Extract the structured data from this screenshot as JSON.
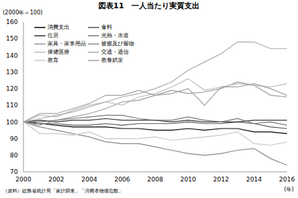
{
  "chart_data": {
    "type": "line",
    "title": "図表11　一人当たり実質支出",
    "y_label": "(2000年＝100)",
    "x_unit": "(年)",
    "note": "（資料）総務省統計局「家計調査」「消費者物価指数」",
    "x": [
      2000,
      2001,
      2002,
      2003,
      2004,
      2005,
      2006,
      2007,
      2008,
      2009,
      2010,
      2011,
      2012,
      2013,
      2014,
      2015,
      2016
    ],
    "xlim": [
      2000,
      2016
    ],
    "xticks": [
      2000,
      2002,
      2004,
      2006,
      2008,
      2010,
      2012,
      2014,
      2016
    ],
    "ylim": [
      70,
      160
    ],
    "yticks": [
      70,
      80,
      90,
      100,
      110,
      120,
      130,
      140,
      150,
      160
    ],
    "grid": false,
    "legend": "top-left",
    "series": [
      {
        "name": "消費支出",
        "color": "#000000",
        "values": [
          100,
          99,
          98,
          97,
          97,
          97,
          96,
          96,
          95,
          95,
          96,
          95,
          96,
          96,
          94,
          94,
          93
        ]
      },
      {
        "name": "食料",
        "color": "#555555",
        "values": [
          100,
          99,
          99,
          98,
          98,
          99,
          98,
          99,
          99,
          99,
          100,
          99,
          99,
          100,
          99,
          97,
          96
        ]
      },
      {
        "name": "住居",
        "color": "#333333",
        "values": [
          100,
          101,
          100,
          101,
          101,
          102,
          101,
          101,
          101,
          100,
          101,
          100,
          100,
          100,
          101,
          101,
          101
        ]
      },
      {
        "name": "光熱・水道",
        "color": "#777777",
        "values": [
          100,
          100,
          101,
          102,
          103,
          104,
          104,
          102,
          101,
          101,
          103,
          101,
          100,
          102,
          99,
          100,
          98
        ]
      },
      {
        "name": "家具・家事用品",
        "color": "#999999",
        "values": [
          100,
          98,
          101,
          103,
          105,
          108,
          112,
          113,
          116,
          119,
          117,
          118,
          120,
          124,
          122,
          116,
          115
        ]
      },
      {
        "name": "被服及び履物",
        "color": "#888888",
        "values": [
          100,
          97,
          95,
          93,
          91,
          88,
          87,
          87,
          85,
          83,
          81,
          80,
          81,
          83,
          84,
          78,
          74
        ]
      },
      {
        "name": "保健医療",
        "color": "#bbbbbb",
        "values": [
          100,
          104,
          103,
          107,
          110,
          112,
          110,
          115,
          117,
          121,
          126,
          119,
          121,
          123,
          122,
          121,
          123
        ]
      },
      {
        "name": "交通・通信",
        "color": "#aaaaaa",
        "values": [
          100,
          102,
          104,
          106,
          109,
          112,
          115,
          117,
          120,
          124,
          131,
          136,
          141,
          148,
          148,
          144,
          144
        ]
      },
      {
        "name": "教育",
        "color": "#c8c8c8",
        "values": [
          100,
          93,
          93,
          92,
          94,
          90,
          90,
          90,
          91,
          89,
          90,
          91,
          92,
          94,
          87,
          86,
          88
        ]
      },
      {
        "name": "教養娯楽",
        "color": "#a0a0a0",
        "values": [
          100,
          105,
          105,
          108,
          111,
          116,
          116,
          119,
          116,
          117,
          120,
          110,
          121,
          121,
          123,
          120,
          116
        ]
      }
    ]
  }
}
